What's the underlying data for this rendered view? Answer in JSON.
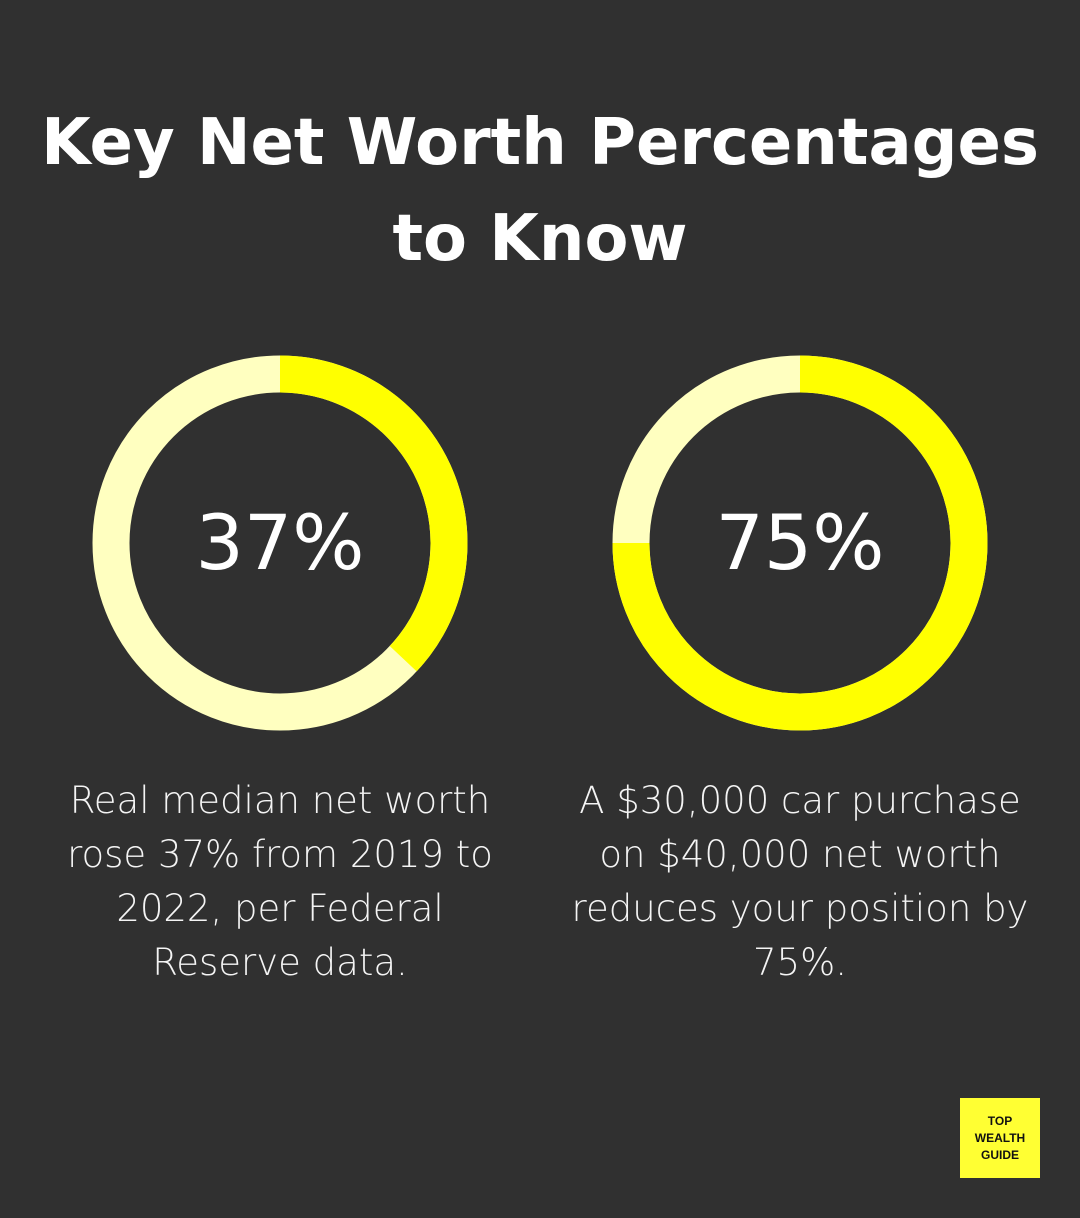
{
  "title": "Key Net Worth Percentages to Know",
  "chart_data": [
    {
      "type": "donut",
      "values": [
        37
      ],
      "value_labels": [
        "37%"
      ],
      "color": "#ffff00",
      "track_color": "#ffffc0",
      "caption": "Real median net worth rose 37% from 2019 to 2022, per Federal Reserve data."
    },
    {
      "type": "donut",
      "values": [
        75
      ],
      "value_labels": [
        "75%"
      ],
      "color": "#ffff00",
      "track_color": "#ffffc0",
      "caption": "A $30,000 car purchase on $40,000 net worth reduces your position by 75%."
    }
  ],
  "logo": [
    "TOP",
    "WEALTH",
    "GUIDE"
  ]
}
